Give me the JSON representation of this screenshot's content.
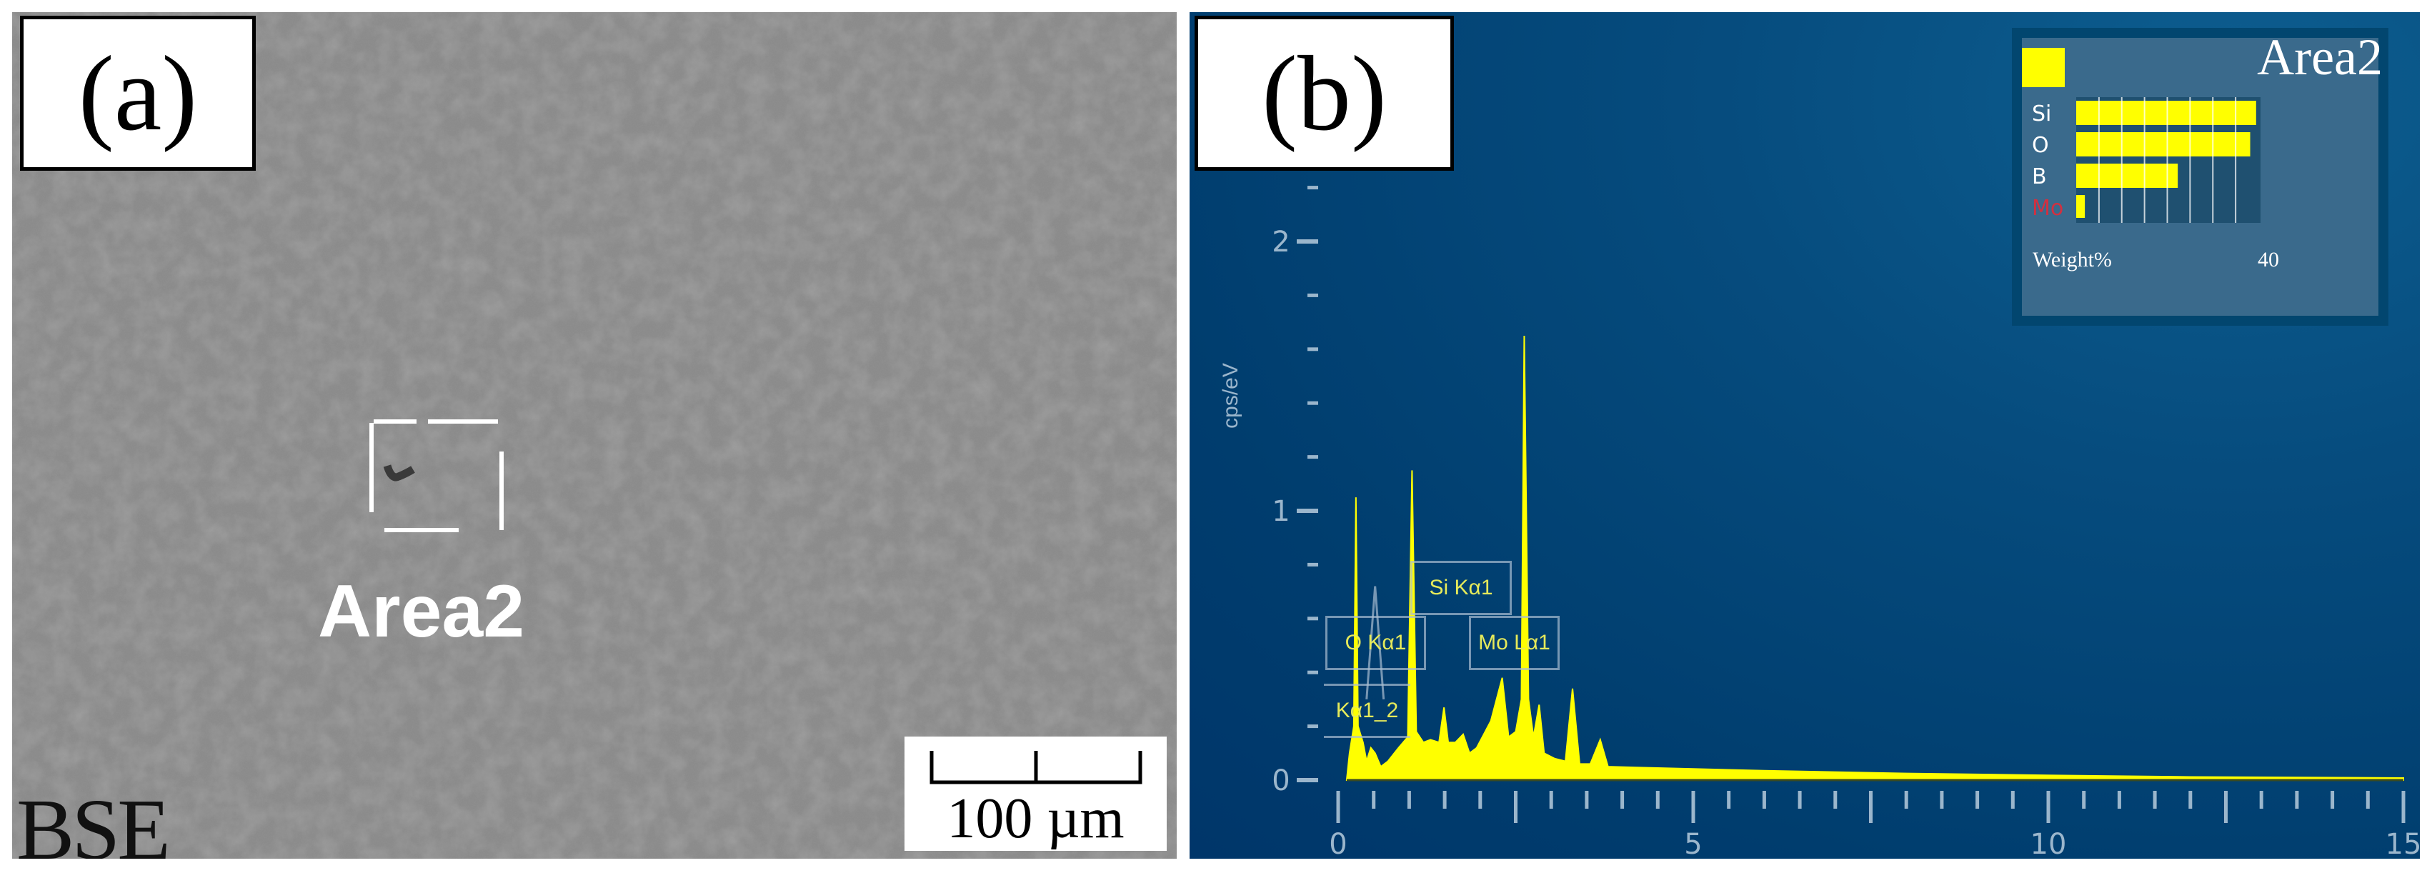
{
  "panel_a": {
    "label": "(a)",
    "region_label": "Area2",
    "mode_label": "BSE",
    "scale_bar": "100 µm"
  },
  "panel_b": {
    "label": "(b)",
    "area_title": "Area2"
  },
  "chart_data": [
    {
      "type": "area",
      "title": "",
      "xlabel": "",
      "ylabel": "cps/eV",
      "xlim": [
        0,
        15
      ],
      "ylim": [
        0,
        2.6
      ],
      "x_ticks": [
        "0",
        "5",
        "10",
        "15"
      ],
      "y_ticks": [
        "0",
        "1",
        "2"
      ],
      "grid": false,
      "colors": {
        "fill": "#ffff00",
        "background": "#004070",
        "text": "#e6ea5a"
      },
      "points": [
        [
          0.12,
          0.0
        ],
        [
          0.16,
          0.1
        ],
        [
          0.22,
          0.2
        ],
        [
          0.25,
          1.05
        ],
        [
          0.28,
          0.2
        ],
        [
          0.35,
          0.14
        ],
        [
          0.4,
          0.07
        ],
        [
          0.46,
          0.12
        ],
        [
          0.52,
          0.1
        ],
        [
          0.6,
          0.05
        ],
        [
          0.7,
          0.07
        ],
        [
          0.85,
          0.12
        ],
        [
          0.98,
          0.16
        ],
        [
          1.04,
          1.15
        ],
        [
          1.1,
          0.18
        ],
        [
          1.2,
          0.14
        ],
        [
          1.3,
          0.15
        ],
        [
          1.42,
          0.14
        ],
        [
          1.49,
          0.27
        ],
        [
          1.55,
          0.14
        ],
        [
          1.65,
          0.14
        ],
        [
          1.76,
          0.17
        ],
        [
          1.85,
          0.1
        ],
        [
          1.95,
          0.12
        ],
        [
          2.05,
          0.17
        ],
        [
          2.15,
          0.22
        ],
        [
          2.31,
          0.38
        ],
        [
          2.4,
          0.16
        ],
        [
          2.5,
          0.18
        ],
        [
          2.58,
          0.3
        ],
        [
          2.62,
          1.65
        ],
        [
          2.68,
          0.3
        ],
        [
          2.75,
          0.16
        ],
        [
          2.83,
          0.28
        ],
        [
          2.9,
          0.1
        ],
        [
          3.05,
          0.08
        ],
        [
          3.2,
          0.07
        ],
        [
          3.3,
          0.34
        ],
        [
          3.4,
          0.06
        ],
        [
          3.55,
          0.06
        ],
        [
          3.69,
          0.15
        ],
        [
          3.8,
          0.05
        ],
        [
          4.5,
          0.045
        ],
        [
          6,
          0.035
        ],
        [
          8,
          0.025
        ],
        [
          10,
          0.018
        ],
        [
          12,
          0.012
        ],
        [
          15,
          0.008
        ]
      ],
      "annotations": [
        "Si Kα1",
        "O Kα1",
        "Mo Lα1",
        "Kα1_2"
      ],
      "reference_peaks": [
        {
          "label": "O Kα1",
          "x": 0.52,
          "y": 0.72
        }
      ]
    },
    {
      "type": "bar",
      "orientation": "horizontal",
      "categories": [
        "Si",
        "O",
        "B",
        "Mo"
      ],
      "values": [
        39.5,
        38.2,
        22.3,
        1.9
      ],
      "xlabel": "Weight%",
      "x_tick_label": "40",
      "xlim": [
        0,
        40
      ],
      "colors": {
        "bar": "#ffff00",
        "label": "#ffffff",
        "highlight_label": "#d23040"
      }
    }
  ]
}
